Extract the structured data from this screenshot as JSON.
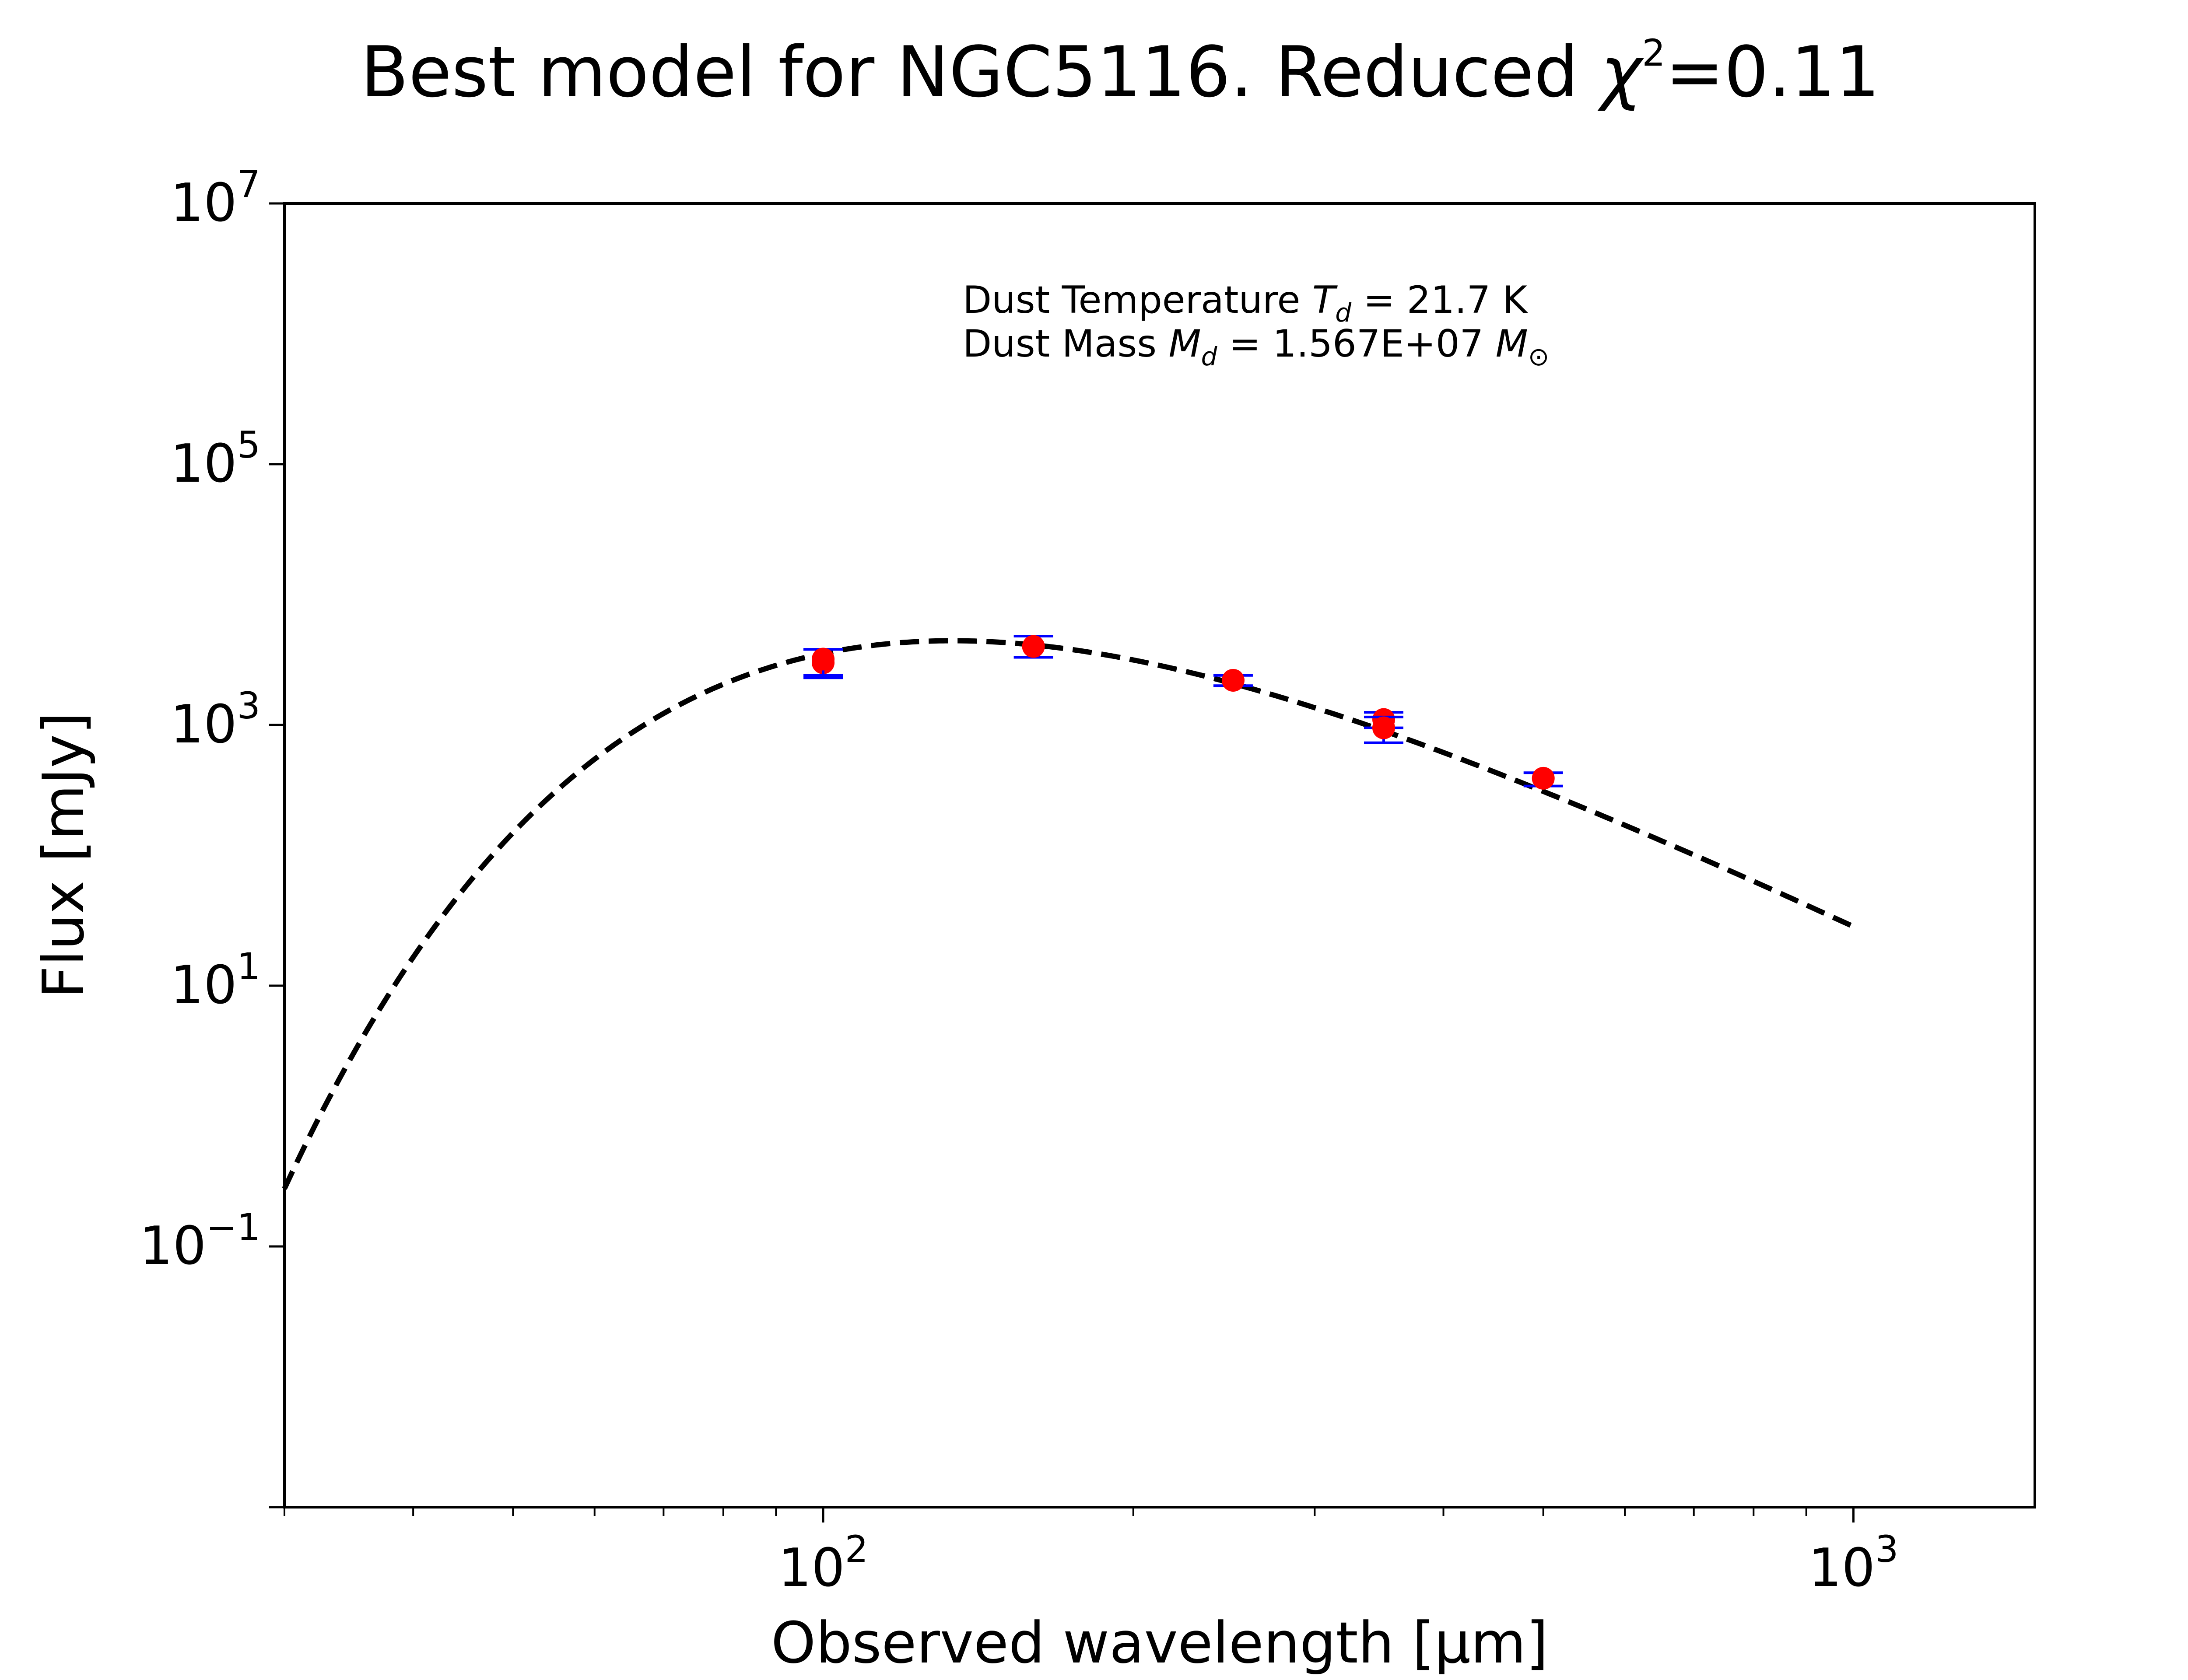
{
  "chart_data": {
    "type": "scatter",
    "title_parts": {
      "main": "Best model for NGC5116. Reduced ",
      "chi": "χ",
      "exp": "2",
      "tail": "=0.11"
    },
    "xlabel": "Observed wavelength [μm]",
    "ylabel": "Flux [mJy]",
    "xscale": "log",
    "yscale": "log",
    "xlim": [
      30,
      1500
    ],
    "ylim": [
      0.001,
      10000000
    ],
    "x_ticks": [
      {
        "value": 100,
        "base": "10",
        "exp": "2"
      },
      {
        "value": 1000,
        "base": "10",
        "exp": "3"
      }
    ],
    "y_ticks": [
      {
        "value": 0.1,
        "base": "10",
        "exp": "−1"
      },
      {
        "value": 10,
        "base": "10",
        "exp": "1"
      },
      {
        "value": 1000,
        "base": "10",
        "exp": "3"
      },
      {
        "value": 100000,
        "base": "10",
        "exp": "5"
      },
      {
        "value": 10000000,
        "base": "10",
        "exp": "7"
      }
    ],
    "annotation": {
      "line1": {
        "prefix": "Dust Temperature ",
        "var": "T",
        "sub": "d",
        "suffix": " = 21.7 K"
      },
      "line2": {
        "prefix": "Dust Mass ",
        "var": "M",
        "sub": "d",
        "suffix": " = 1.567E+07 ",
        "unit": "M",
        "unit_sub": "⊙"
      }
    },
    "model": {
      "style": "dashed",
      "color": "#000000",
      "temperature_K": 21.7,
      "x_range": [
        30,
        1000
      ],
      "peak_x": 140,
      "peak_y": 4400
    },
    "observations": [
      {
        "x": 100,
        "y": 3000,
        "yerr_low": 2300,
        "yerr_high": 3800
      },
      {
        "x": 100,
        "y": 3200,
        "yerr_low": 2400,
        "yerr_high": 3800
      },
      {
        "x": 160,
        "y": 4000,
        "yerr_low": 3300,
        "yerr_high": 4800
      },
      {
        "x": 250,
        "y": 2200,
        "yerr_low": 2000,
        "yerr_high": 2400
      },
      {
        "x": 350,
        "y": 1100,
        "yerr_low": 950,
        "yerr_high": 1250
      },
      {
        "x": 350,
        "y": 950,
        "yerr_low": 730,
        "yerr_high": 1150
      },
      {
        "x": 500,
        "y": 390,
        "yerr_low": 340,
        "yerr_high": 430
      }
    ],
    "point_color": "#ff0000",
    "errorbar_color": "#0000ff"
  }
}
